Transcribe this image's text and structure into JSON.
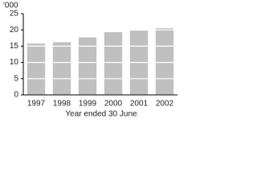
{
  "chart_data": {
    "type": "bar",
    "ylabel": "'000",
    "xlabel": "Year ended 30 June",
    "categories": [
      "1997",
      "1998",
      "1999",
      "2000",
      "2001",
      "2002"
    ],
    "values": [
      15.8,
      16.2,
      17.7,
      19.3,
      19.8,
      20.5
    ],
    "color": "#c0c0c0",
    "ylim": [
      0,
      25
    ],
    "yticks": [
      0,
      5,
      10,
      15,
      20,
      25
    ],
    "grid": true,
    "grid_color": "#ffffff"
  }
}
